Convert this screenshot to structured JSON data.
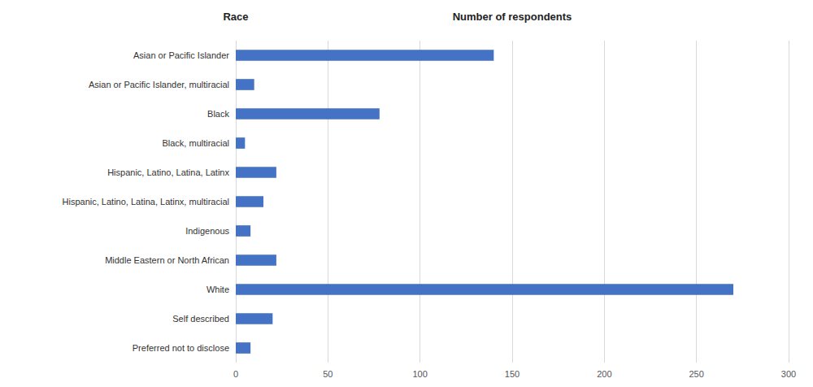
{
  "chart_data": {
    "type": "bar",
    "orientation": "horizontal",
    "xlabel": "Number of respondents",
    "ylabel": "Race",
    "categories": [
      "Asian or Pacific Islander",
      "Asian or Pacific Islander, multiracial",
      "Black",
      "Black, multiracial",
      "Hispanic, Latino, Latina, Latinx",
      "Hispanic, Latino, Latina, Latinx, multiracial",
      "Indigenous",
      "Middle Eastern or North African",
      "White",
      "Self described",
      "Preferred not to disclose"
    ],
    "values": [
      140,
      10,
      78,
      5,
      22,
      15,
      8,
      22,
      270,
      20,
      8
    ],
    "color": "#4472C4",
    "xlim": [
      0,
      300
    ],
    "xticks": [
      0,
      50,
      100,
      150,
      200,
      250,
      300
    ],
    "grid": true
  }
}
